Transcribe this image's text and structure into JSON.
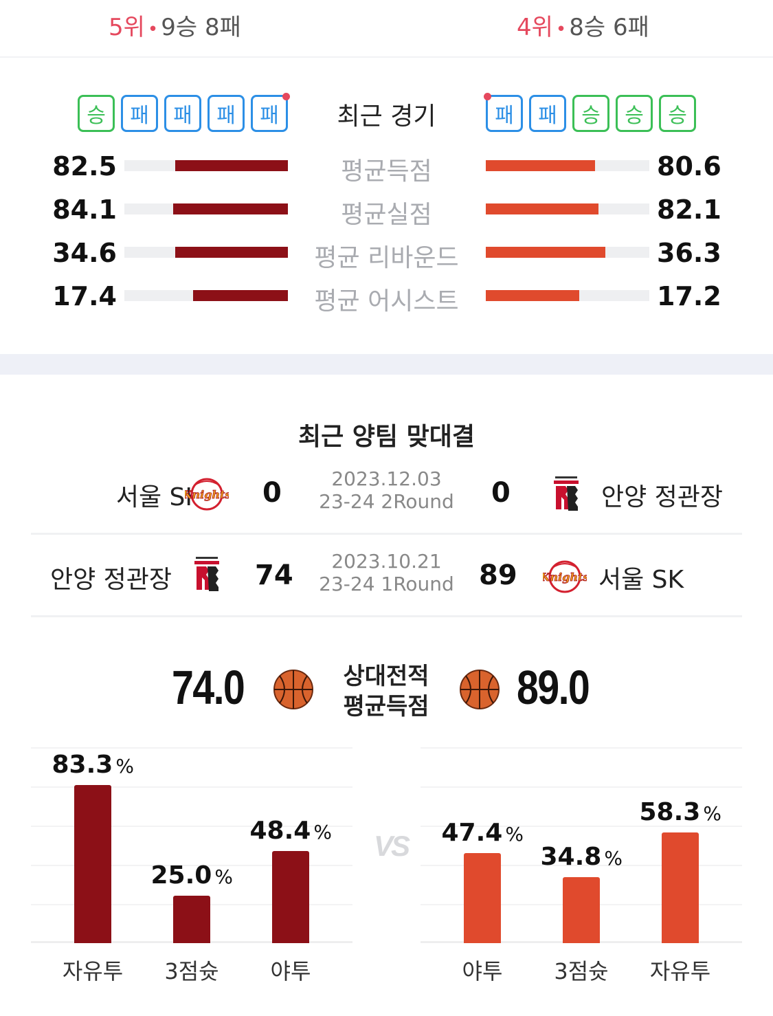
{
  "standings": {
    "left": {
      "rank": "5위",
      "record": "9승 8패"
    },
    "right": {
      "rank": "4위",
      "record": "8승 6패"
    }
  },
  "recent": {
    "title": "최근 경기",
    "left": [
      "승",
      "패",
      "패",
      "패",
      "패"
    ],
    "right": [
      "패",
      "패",
      "승",
      "승",
      "승"
    ]
  },
  "stats": [
    {
      "label": "평균득점",
      "left": "82.5",
      "right": "80.6",
      "left_fraction": 0.69,
      "right_fraction": 0.67
    },
    {
      "label": "평균실점",
      "left": "84.1",
      "right": "82.1",
      "left_fraction": 0.7,
      "right_fraction": 0.69
    },
    {
      "label": "평균 리바운드",
      "left": "34.6",
      "right": "36.3",
      "left_fraction": 0.69,
      "right_fraction": 0.73
    },
    {
      "label": "평균 어시스트",
      "left": "17.4",
      "right": "17.2",
      "left_fraction": 0.58,
      "right_fraction": 0.57
    }
  ],
  "h2h": {
    "title": "최근 양팀 맞대결",
    "matches": [
      {
        "home": "서울 SK",
        "home_logo": "knights",
        "home_score": "0",
        "date": "2023.12.03",
        "round": "23-24 2Round",
        "away_score": "0",
        "away": "안양 정관장",
        "away_logo": "red-boosters"
      },
      {
        "home": "안양 정관장",
        "home_logo": "red-boosters",
        "home_score": "74",
        "date": "2023.10.21",
        "round": "23-24 1Round",
        "away_score": "89",
        "away": "서울 SK",
        "away_logo": "knights"
      }
    ]
  },
  "avg_points": {
    "left": "74.0",
    "right": "89.0",
    "label_line1": "상대전적",
    "label_line2": "평균득점"
  },
  "shooting": {
    "vs": "VS",
    "left": [
      {
        "category": "자유투",
        "value": "83.3",
        "pct": 83.3
      },
      {
        "category": "3점슛",
        "value": "25.0",
        "pct": 25.0
      },
      {
        "category": "야투",
        "value": "48.4",
        "pct": 48.4
      }
    ],
    "right": [
      {
        "category": "야투",
        "value": "47.4",
        "pct": 47.4
      },
      {
        "category": "3점슛",
        "value": "34.8",
        "pct": 34.8
      },
      {
        "category": "자유투",
        "value": "58.3",
        "pct": 58.3
      }
    ],
    "unit": "%",
    "colors": {
      "left": "#8c1017",
      "right": "#e04a2d"
    }
  }
}
